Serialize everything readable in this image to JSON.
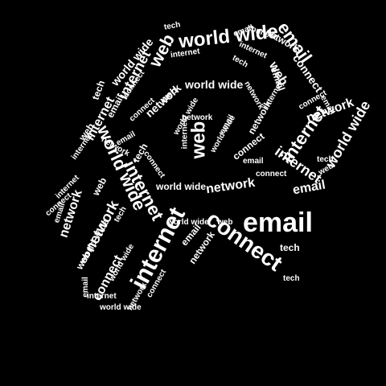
{
  "colors": {
    "background": "#000000",
    "text": "#ffffff"
  },
  "cloud": {
    "words": [
      "tech",
      "email",
      "world wide",
      "web",
      "internet",
      "connect",
      "network",
      "world wide",
      "internet",
      "connect",
      "email",
      "web",
      "internet",
      "tech",
      "network",
      "web",
      "email",
      "world wide",
      "network",
      "connect",
      "tech",
      "email",
      "internet",
      "web",
      "connect",
      "world wide",
      "network",
      "internet",
      "world wide",
      "email",
      "tech",
      "connect",
      "network",
      "internet",
      "web",
      "email",
      "world wide",
      "connect",
      "network",
      "internet",
      "email",
      "internet",
      "connect",
      "network",
      "email",
      "world wide",
      "tech",
      "web",
      "connect",
      "internet",
      "network",
      "email",
      "world wide",
      "web",
      "internet",
      "connect",
      "email",
      "network",
      "internet",
      "tech",
      "world wide",
      "network",
      "world wide",
      "email",
      "web",
      "connect",
      "email",
      "network",
      "internet",
      "tech",
      "world wide",
      "web",
      "connect",
      "email",
      "internet",
      "network",
      "world wide",
      "connect",
      "tech"
    ]
  }
}
